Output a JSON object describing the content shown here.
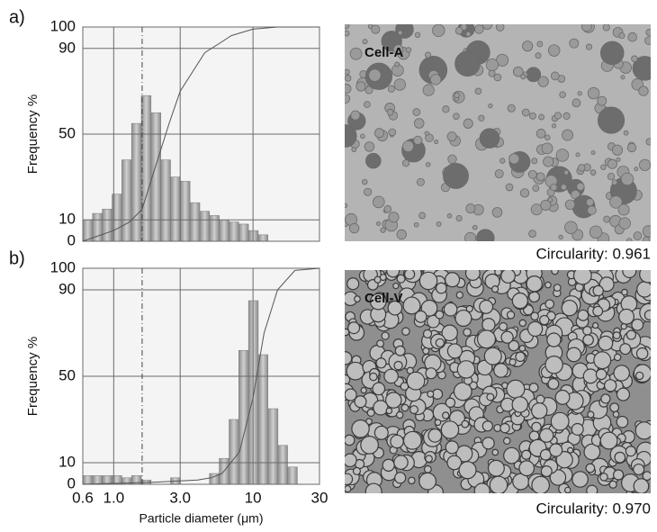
{
  "chart_data": [
    {
      "type": "histogram",
      "label": "a)",
      "ylabel": "Frequency %",
      "log_x": true,
      "grid": true,
      "xlim": [
        0.6,
        30
      ],
      "xticks": [
        0.6,
        1,
        3,
        10,
        30
      ],
      "ylim": [
        0,
        100
      ],
      "yticks": [
        0,
        10,
        50,
        90,
        100
      ],
      "color": "#a9a9a9",
      "line_color": "#555555",
      "reference_x": 1.6,
      "bins": [
        0.6,
        0.705,
        0.828,
        0.973,
        1.143,
        1.343,
        1.578,
        1.853,
        2.178,
        2.558,
        3.006,
        3.53,
        4.15,
        4.87,
        5.72,
        6.73,
        7.9,
        9.28,
        10.9,
        12.8,
        15.1,
        17.7
      ],
      "values": [
        10,
        13,
        15,
        22,
        38,
        55,
        68,
        60,
        38,
        30,
        28,
        18,
        14,
        12,
        10,
        9,
        8,
        5,
        3,
        0,
        0
      ],
      "cumulative": {
        "x": [
          0.6,
          1,
          1.3,
          1.6,
          2,
          2.5,
          3,
          4.5,
          7,
          10,
          15,
          20,
          30
        ],
        "values": [
          0,
          5,
          9,
          15,
          35,
          55,
          70,
          88,
          96,
          99,
          100,
          100,
          100
        ]
      }
    },
    {
      "type": "histogram",
      "label": "b)",
      "ylabel": "Frequency %",
      "xlabel": "Particle diameter (μm)",
      "log_x": true,
      "grid": true,
      "xlim": [
        0.6,
        30
      ],
      "xticks": [
        0.6,
        {
          "value": 1,
          "label": "1.0"
        },
        {
          "value": 3,
          "label": "3.0"
        },
        10,
        30
      ],
      "ylim": [
        0,
        100
      ],
      "yticks": [
        0,
        10,
        50,
        90,
        100
      ],
      "color": "#a9a9a9",
      "line_color": "#555555",
      "reference_x": 1.6,
      "bins": [
        0.6,
        0.705,
        0.828,
        0.973,
        1.143,
        1.343,
        1.578,
        1.853,
        2.178,
        2.558,
        3.006,
        3.53,
        4.15,
        4.87,
        5.72,
        6.73,
        7.9,
        9.28,
        10.9,
        12.8,
        15.1,
        17.7,
        20.8
      ],
      "values": [
        4,
        4,
        4,
        4,
        3,
        4,
        2,
        0,
        0,
        3,
        0,
        0,
        0,
        5,
        12,
        30,
        62,
        85,
        60,
        35,
        18,
        8
      ],
      "cumulative": {
        "x": [
          0.6,
          2,
          4,
          5,
          6,
          8,
          10,
          12,
          15,
          20,
          30
        ],
        "values": [
          0,
          1,
          2,
          3,
          5,
          15,
          40,
          70,
          90,
          99,
          100
        ]
      }
    }
  ],
  "images": [
    {
      "label": "Cell-A",
      "caption": "Circularity: 0.961"
    },
    {
      "label": "Cell-V",
      "caption": "Circularity: 0.970"
    }
  ]
}
